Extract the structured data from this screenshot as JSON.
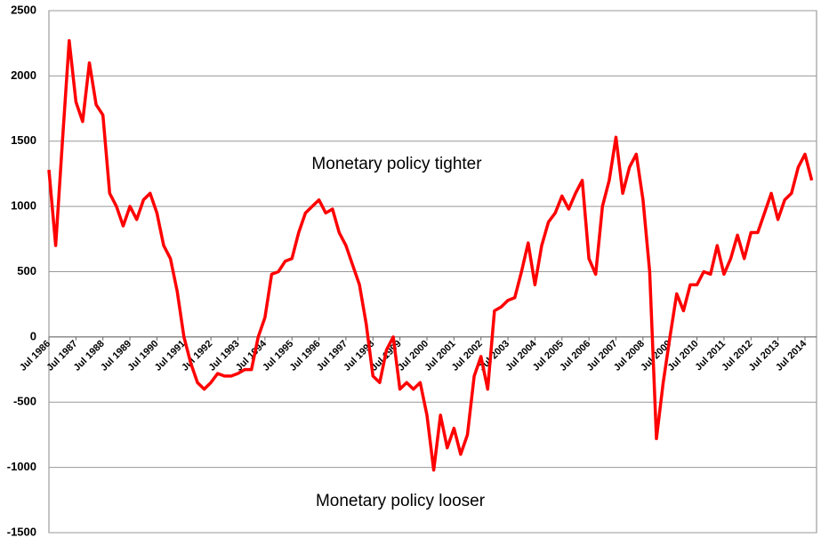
{
  "chart_data": {
    "type": "line",
    "annotations": [
      "Monetary policy tighter",
      "Monetary policy looser"
    ],
    "color": "#ff0000",
    "categories": [
      "Jul 1986",
      null,
      null,
      null,
      "Jul 1987",
      null,
      null,
      null,
      "Jul 1988",
      null,
      null,
      null,
      "Jul 1989",
      null,
      null,
      null,
      "Jul 1990",
      null,
      null,
      null,
      "Jul 1991",
      null,
      null,
      null,
      "Jul 1992",
      null,
      null,
      null,
      "Jul 1993",
      null,
      null,
      null,
      "Jul 1994",
      null,
      null,
      null,
      "Jul 1995",
      null,
      null,
      null,
      "Jul 1996",
      null,
      null,
      null,
      "Jul 1997",
      null,
      null,
      null,
      "Jul 1998",
      null,
      null,
      null,
      "Jul 1999",
      null,
      null,
      null,
      "Jul 2000",
      null,
      null,
      null,
      "Jul 2001",
      null,
      null,
      null,
      "Jul 2002",
      null,
      null,
      null,
      "Jul 2003",
      null,
      null,
      null,
      "Jul 2004",
      null,
      null,
      null,
      "Jul 2005",
      null,
      null,
      null,
      "Jul 2006",
      null,
      null,
      null,
      "Jul 2007",
      null,
      null,
      null,
      "Jul 2008",
      null,
      null,
      null,
      "Jul 2009",
      null,
      null,
      null,
      "Jul 2010",
      null,
      null,
      null,
      "Jul 2011",
      null,
      null,
      null,
      "Jul 2012",
      null,
      null,
      null,
      "Jul 2013",
      null,
      null,
      null,
      "Jul 2014",
      null
    ],
    "values": [
      1280,
      700,
      1500,
      2270,
      1800,
      1650,
      2100,
      1780,
      1700,
      1100,
      1000,
      850,
      1000,
      900,
      1050,
      1100,
      950,
      700,
      600,
      350,
      0,
      -200,
      -350,
      -400,
      -350,
      -280,
      -300,
      -300,
      -280,
      -250,
      -250,
      0,
      150,
      480,
      500,
      580,
      600,
      800,
      950,
      1000,
      1050,
      950,
      980,
      800,
      700,
      550,
      400,
      100,
      -300,
      -350,
      -100,
      0,
      -400,
      -350,
      -400,
      -350,
      -600,
      -1020,
      -600,
      -850,
      -700,
      -900,
      -750,
      -300,
      -150,
      -400,
      200,
      230,
      280,
      300,
      500,
      720,
      400,
      700,
      880,
      950,
      1080,
      980,
      1100,
      1200,
      600,
      480,
      1000,
      1200,
      1530,
      1100,
      1300,
      1400,
      1050,
      500,
      -780,
      -350,
      0,
      330,
      200,
      400,
      400,
      500,
      480,
      700,
      480,
      600,
      780,
      600,
      800,
      800,
      950,
      1100,
      900,
      1050,
      1100,
      1300,
      1400,
      1200
    ],
    "ylim": [
      -1500,
      2500
    ],
    "yticks": [
      -1500,
      -1000,
      -500,
      0,
      500,
      1000,
      1500,
      2000,
      2500
    ],
    "grid": true
  }
}
